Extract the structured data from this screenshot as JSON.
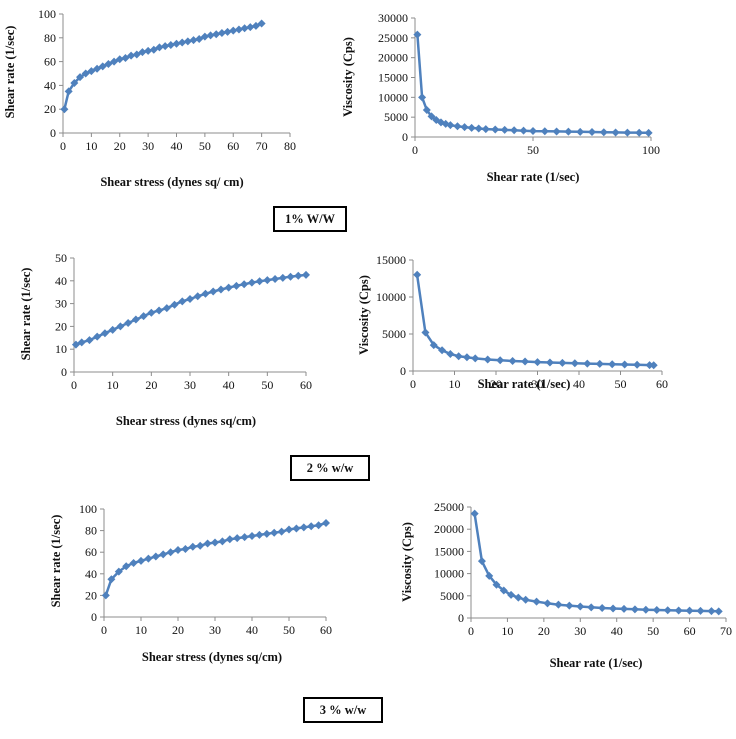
{
  "colors": {
    "series": "#4f81bd",
    "axis": "#8c8c8c"
  },
  "labels": [
    {
      "text": "1% W/W"
    },
    {
      "text": "2 % w/w"
    },
    {
      "text": "3 % w/w"
    }
  ],
  "chart_data": [
    {
      "type": "line",
      "xlabel": "Shear stress (dynes sq/ cm)",
      "ylabel": "Shear rate (1/sec)",
      "xlim": [
        0,
        80
      ],
      "ylim": [
        0,
        100
      ],
      "xticks": [
        0,
        10,
        20,
        30,
        40,
        50,
        60,
        70,
        80
      ],
      "yticks": [
        0,
        20,
        40,
        60,
        80,
        100
      ],
      "series": [
        {
          "x": [
            0.5,
            2,
            4,
            6,
            8,
            10,
            12,
            14,
            16,
            18,
            20,
            22,
            24,
            26,
            28,
            30,
            32,
            34,
            36,
            38,
            40,
            42,
            44,
            46,
            48,
            50,
            52,
            54,
            56,
            58,
            60,
            62,
            64,
            66,
            68,
            70
          ],
          "y": [
            20,
            35,
            42,
            47,
            50,
            52,
            54,
            56,
            58,
            60,
            62,
            63,
            65,
            66,
            68,
            69,
            70,
            72,
            73,
            74,
            75,
            76,
            77,
            78,
            79,
            81,
            82,
            83,
            84,
            85,
            86,
            87,
            88,
            89,
            90,
            92
          ]
        }
      ]
    },
    {
      "type": "line",
      "xlabel": "Shear rate (1/sec)",
      "ylabel": "Viscosity (Cps)",
      "xlim": [
        0,
        100
      ],
      "ylim": [
        0,
        30000
      ],
      "xticks": [
        0,
        50,
        100
      ],
      "yticks": [
        0,
        5000,
        10000,
        15000,
        20000,
        25000,
        30000
      ],
      "series": [
        {
          "x": [
            1,
            3,
            5,
            7,
            9,
            11,
            13,
            15,
            18,
            21,
            24,
            27,
            30,
            34,
            38,
            42,
            46,
            50,
            55,
            60,
            65,
            70,
            75,
            80,
            85,
            90,
            95,
            99
          ],
          "y": [
            25800,
            10000,
            6800,
            5200,
            4300,
            3700,
            3300,
            3000,
            2700,
            2500,
            2300,
            2150,
            2000,
            1900,
            1800,
            1700,
            1600,
            1500,
            1450,
            1400,
            1350,
            1300,
            1250,
            1200,
            1150,
            1100,
            1080,
            1050
          ]
        }
      ]
    },
    {
      "type": "line",
      "xlabel": "Shear stress (dynes sq/cm)",
      "ylabel": "Shear rate (1/sec)",
      "xlim": [
        0,
        60
      ],
      "ylim": [
        0,
        50
      ],
      "xticks": [
        0,
        10,
        20,
        30,
        40,
        50,
        60
      ],
      "yticks": [
        0,
        10,
        20,
        30,
        40,
        50
      ],
      "series": [
        {
          "x": [
            0.5,
            2,
            4,
            6,
            8,
            10,
            12,
            14,
            16,
            18,
            20,
            22,
            24,
            26,
            28,
            30,
            32,
            34,
            36,
            38,
            40,
            42,
            44,
            46,
            48,
            50,
            52,
            54,
            56,
            58,
            60
          ],
          "y": [
            12,
            13,
            14,
            15.5,
            17,
            18.5,
            20,
            21.5,
            23,
            24.5,
            26,
            27,
            28,
            29.5,
            31,
            32,
            33.2,
            34.3,
            35.3,
            36.2,
            37,
            37.8,
            38.5,
            39.2,
            39.8,
            40.3,
            40.8,
            41.3,
            41.8,
            42.2,
            42.6
          ]
        }
      ]
    },
    {
      "type": "line",
      "xlabel": "Shear rate (1/sec)",
      "ylabel": "Viscosity (Cps)",
      "xlim": [
        0,
        60
      ],
      "ylim": [
        0,
        15000
      ],
      "xticks": [
        0,
        10,
        20,
        30,
        40,
        50,
        60
      ],
      "yticks": [
        0,
        5000,
        10000,
        15000
      ],
      "series": [
        {
          "x": [
            1,
            3,
            5,
            7,
            9,
            11,
            13,
            15,
            18,
            21,
            24,
            27,
            30,
            33,
            36,
            39,
            42,
            45,
            48,
            51,
            54,
            57,
            58
          ],
          "y": [
            13000,
            5200,
            3500,
            2800,
            2300,
            2000,
            1850,
            1700,
            1550,
            1450,
            1350,
            1280,
            1200,
            1150,
            1100,
            1050,
            1000,
            960,
            920,
            880,
            840,
            800,
            780
          ]
        }
      ]
    },
    {
      "type": "line",
      "xlabel": "Shear stress (dynes sq/cm)",
      "ylabel": "Shear rate (1/sec)",
      "xlim": [
        0,
        60
      ],
      "ylim": [
        0,
        100
      ],
      "xticks": [
        0,
        10,
        20,
        30,
        40,
        50,
        60
      ],
      "yticks": [
        0,
        20,
        40,
        60,
        80,
        100
      ],
      "series": [
        {
          "x": [
            0.5,
            2,
            4,
            6,
            8,
            10,
            12,
            14,
            16,
            18,
            20,
            22,
            24,
            26,
            28,
            30,
            32,
            34,
            36,
            38,
            40,
            42,
            44,
            46,
            48,
            50,
            52,
            54,
            56,
            58,
            60
          ],
          "y": [
            20,
            35,
            42,
            47,
            50,
            52,
            54,
            56,
            58,
            60,
            62,
            63,
            65,
            66,
            68,
            69,
            70,
            72,
            73,
            74,
            75,
            76,
            77,
            78,
            79,
            81,
            82,
            83,
            84,
            85,
            87
          ]
        }
      ]
    },
    {
      "type": "line",
      "xlabel": "Shear rate (1/sec)",
      "ylabel": "Viscosity (Cps)",
      "xlim": [
        0,
        70
      ],
      "ylim": [
        0,
        25000
      ],
      "xticks": [
        0,
        10,
        20,
        30,
        40,
        50,
        60,
        70
      ],
      "yticks": [
        0,
        5000,
        10000,
        15000,
        20000,
        25000
      ],
      "series": [
        {
          "x": [
            1,
            3,
            5,
            7,
            9,
            11,
            13,
            15,
            18,
            21,
            24,
            27,
            30,
            33,
            36,
            39,
            42,
            45,
            48,
            51,
            54,
            57,
            60,
            63,
            66,
            68
          ],
          "y": [
            23500,
            12800,
            9500,
            7500,
            6200,
            5200,
            4600,
            4100,
            3700,
            3300,
            3000,
            2800,
            2600,
            2400,
            2250,
            2150,
            2050,
            1950,
            1850,
            1800,
            1750,
            1700,
            1650,
            1600,
            1550,
            1500
          ]
        }
      ]
    }
  ]
}
